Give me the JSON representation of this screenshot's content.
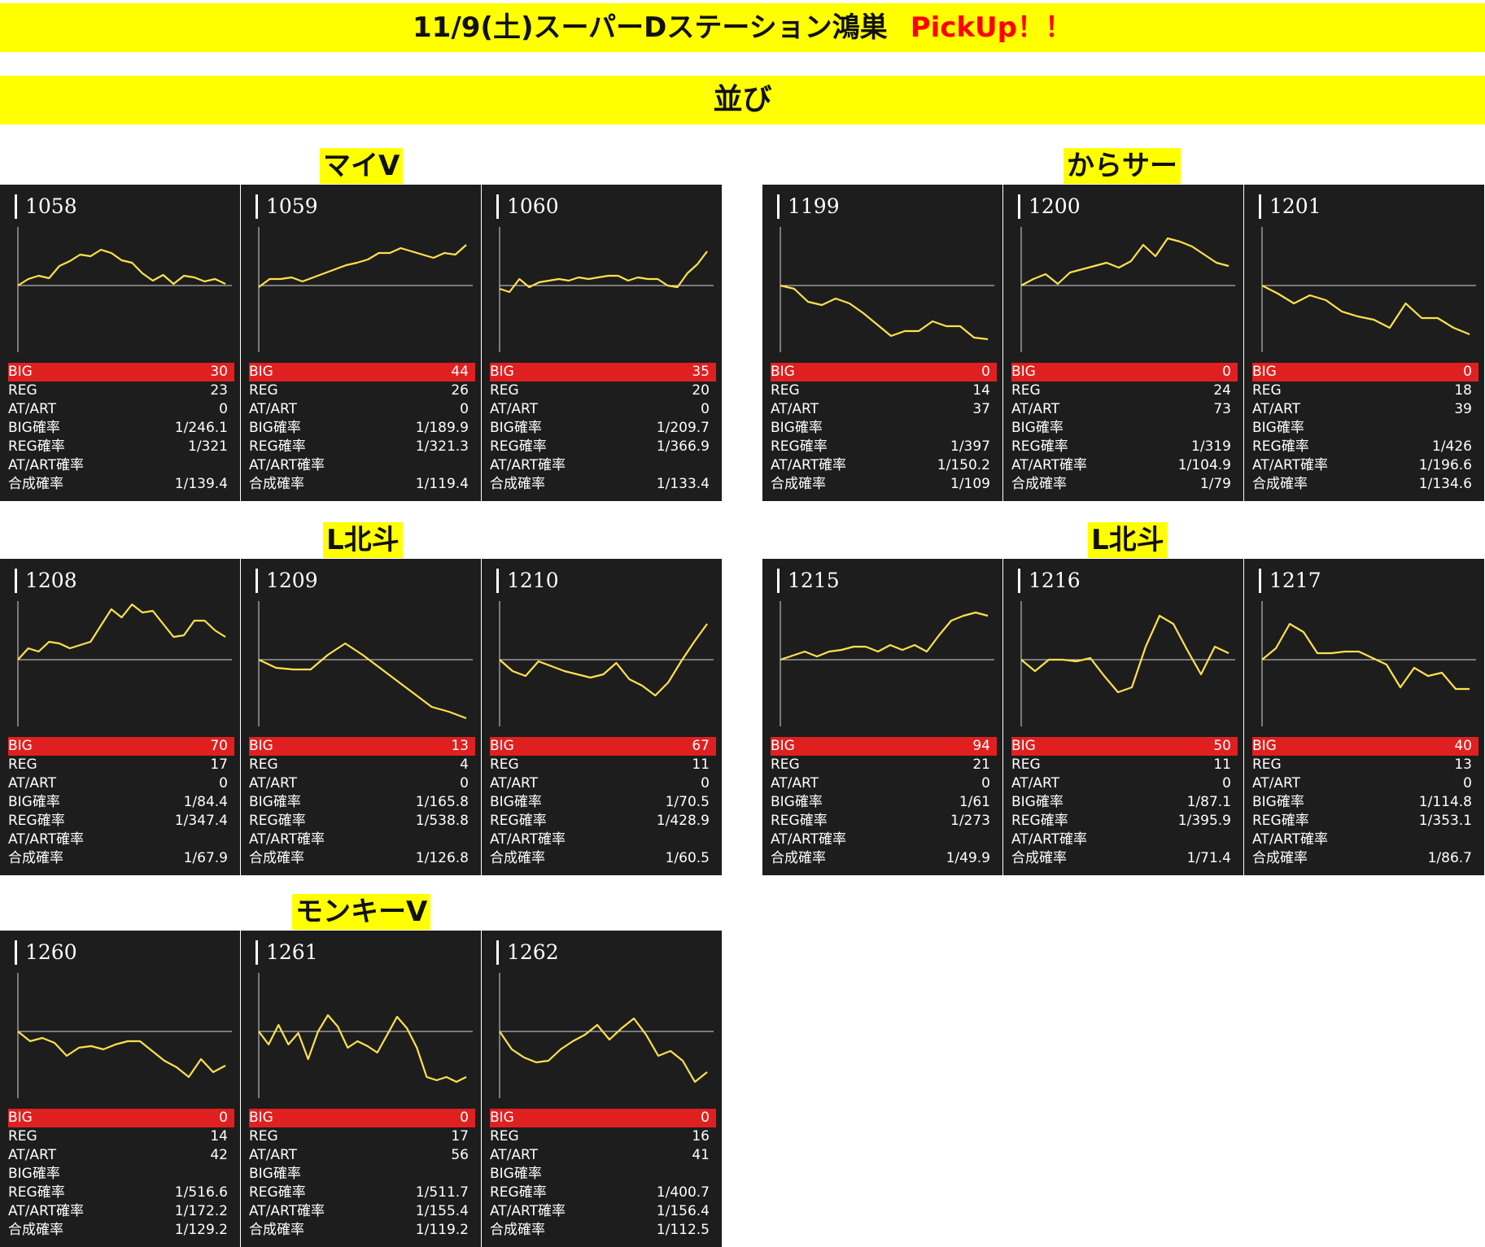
{
  "header": {
    "title": "11/9(土)スーパーDステーション鴻巣",
    "pickup": "PickUp！！"
  },
  "section": {
    "title": "並び"
  },
  "graph_note": "estimated shape only; baseline = 0, illustrative units",
  "groups": [
    {
      "label": "マイV",
      "machines": [
        {
          "no": "1058",
          "stats": [
            [
              "BIG",
              "30"
            ],
            [
              "REG",
              "23"
            ],
            [
              "AT/ART",
              "0"
            ],
            [
              "BIG確率",
              "1/246.1"
            ],
            [
              "REG確率",
              "1/321"
            ],
            [
              "AT/ART確率",
              ""
            ],
            [
              "合成確率",
              "1/139.4"
            ]
          ],
          "graph": [
            0,
            8,
            12,
            9,
            24,
            30,
            38,
            36,
            44,
            40,
            31,
            28,
            15,
            6,
            13,
            2,
            12,
            10,
            5,
            8,
            2
          ]
        },
        {
          "no": "1059",
          "stats": [
            [
              "BIG",
              "44"
            ],
            [
              "REG",
              "26"
            ],
            [
              "AT/ART",
              "0"
            ],
            [
              "BIG確率",
              "1/189.9"
            ],
            [
              "REG確率",
              "1/321.3"
            ],
            [
              "AT/ART確率",
              ""
            ],
            [
              "合成確率",
              "1/119.4"
            ]
          ],
          "graph": [
            -2,
            8,
            8,
            10,
            5,
            10,
            15,
            20,
            25,
            28,
            32,
            40,
            40,
            46,
            42,
            38,
            34,
            40,
            38,
            50
          ]
        },
        {
          "no": "1060",
          "stats": [
            [
              "BIG",
              "35"
            ],
            [
              "REG",
              "20"
            ],
            [
              "AT/ART",
              "0"
            ],
            [
              "BIG確率",
              "1/209.7"
            ],
            [
              "REG確率",
              "1/366.9"
            ],
            [
              "AT/ART確率",
              ""
            ],
            [
              "合成確率",
              "1/133.4"
            ]
          ],
          "graph": [
            -4,
            -8,
            8,
            -2,
            4,
            6,
            8,
            6,
            10,
            8,
            10,
            12,
            12,
            6,
            10,
            8,
            8,
            0,
            -2,
            15,
            26,
            42
          ]
        }
      ]
    },
    {
      "label": "からサー",
      "machines": [
        {
          "no": "1199",
          "stats": [
            [
              "BIG",
              "0"
            ],
            [
              "REG",
              "14"
            ],
            [
              "AT/ART",
              "37"
            ],
            [
              "BIG確率",
              ""
            ],
            [
              "REG確率",
              "1/397"
            ],
            [
              "AT/ART確率",
              "1/150.2"
            ],
            [
              "合成確率",
              "1/109"
            ]
          ],
          "graph": [
            0,
            -4,
            -20,
            -24,
            -16,
            -22,
            -34,
            -48,
            -62,
            -56,
            -56,
            -44,
            -50,
            -50,
            -64,
            -66
          ]
        },
        {
          "no": "1200",
          "stats": [
            [
              "BIG",
              "0"
            ],
            [
              "REG",
              "24"
            ],
            [
              "AT/ART",
              "73"
            ],
            [
              "BIG確率",
              ""
            ],
            [
              "REG確率",
              "1/319"
            ],
            [
              "AT/ART確率",
              "1/104.9"
            ],
            [
              "合成確率",
              "1/79"
            ]
          ],
          "graph": [
            0,
            8,
            14,
            2,
            16,
            20,
            24,
            28,
            22,
            30,
            50,
            36,
            58,
            54,
            48,
            38,
            28,
            24
          ]
        },
        {
          "no": "1201",
          "stats": [
            [
              "BIG",
              "0"
            ],
            [
              "REG",
              "18"
            ],
            [
              "AT/ART",
              "39"
            ],
            [
              "BIG確率",
              ""
            ],
            [
              "REG確率",
              "1/426"
            ],
            [
              "AT/ART確率",
              "1/196.6"
            ],
            [
              "合成確率",
              "1/134.6"
            ]
          ],
          "graph": [
            0,
            -10,
            -22,
            -12,
            -18,
            -32,
            -38,
            -42,
            -52,
            -22,
            -40,
            -40,
            -52,
            -60
          ]
        }
      ]
    },
    {
      "label": "L北斗",
      "machines": [
        {
          "no": "1208",
          "stats": [
            [
              "BIG",
              "70"
            ],
            [
              "REG",
              "17"
            ],
            [
              "AT/ART",
              "0"
            ],
            [
              "BIG確率",
              "1/84.4"
            ],
            [
              "REG確率",
              "1/347.4"
            ],
            [
              "AT/ART確率",
              ""
            ],
            [
              "合成確率",
              "1/67.9"
            ]
          ],
          "graph": [
            0,
            14,
            10,
            22,
            20,
            14,
            18,
            22,
            42,
            62,
            52,
            68,
            58,
            60,
            44,
            28,
            30,
            48,
            48,
            36,
            28
          ]
        },
        {
          "no": "1209",
          "stats": [
            [
              "BIG",
              "13"
            ],
            [
              "REG",
              "4"
            ],
            [
              "AT/ART",
              "0"
            ],
            [
              "BIG確率",
              "1/165.8"
            ],
            [
              "REG確率",
              "1/538.8"
            ],
            [
              "AT/ART確率",
              ""
            ],
            [
              "合成確率",
              "1/126.8"
            ]
          ],
          "graph": [
            0,
            -10,
            -12,
            -12,
            6,
            20,
            6,
            -10,
            -26,
            -42,
            -58,
            -64,
            -72
          ]
        },
        {
          "no": "1210",
          "stats": [
            [
              "BIG",
              "67"
            ],
            [
              "REG",
              "11"
            ],
            [
              "AT/ART",
              "0"
            ],
            [
              "BIG確率",
              "1/70.5"
            ],
            [
              "REG確率",
              "1/428.9"
            ],
            [
              "AT/ART確率",
              ""
            ],
            [
              "合成確率",
              "1/60.5"
            ]
          ],
          "graph": [
            0,
            -14,
            -20,
            -2,
            -8,
            -14,
            -18,
            -22,
            -18,
            -4,
            -24,
            -32,
            -44,
            -28,
            -2,
            22,
            44
          ]
        }
      ]
    },
    {
      "label": "L北斗",
      "machines": [
        {
          "no": "1215",
          "stats": [
            [
              "BIG",
              "94"
            ],
            [
              "REG",
              "21"
            ],
            [
              "AT/ART",
              "0"
            ],
            [
              "BIG確率",
              "1/61"
            ],
            [
              "REG確率",
              "1/273"
            ],
            [
              "AT/ART確率",
              ""
            ],
            [
              "合成確率",
              "1/49.9"
            ]
          ],
          "graph": [
            0,
            5,
            10,
            4,
            10,
            12,
            16,
            16,
            10,
            18,
            12,
            18,
            10,
            30,
            48,
            54,
            58,
            54
          ]
        },
        {
          "no": "1216",
          "stats": [
            [
              "BIG",
              "50"
            ],
            [
              "REG",
              "11"
            ],
            [
              "AT/ART",
              "0"
            ],
            [
              "BIG確率",
              "1/87.1"
            ],
            [
              "REG確率",
              "1/395.9"
            ],
            [
              "AT/ART確率",
              ""
            ],
            [
              "合成確率",
              "1/71.4"
            ]
          ],
          "graph": [
            0,
            -14,
            0,
            0,
            -2,
            2,
            -20,
            -40,
            -34,
            16,
            54,
            44,
            12,
            -18,
            16,
            8
          ]
        },
        {
          "no": "1217",
          "stats": [
            [
              "BIG",
              "40"
            ],
            [
              "REG",
              "13"
            ],
            [
              "AT/ART",
              "0"
            ],
            [
              "BIG確率",
              "1/114.8"
            ],
            [
              "REG確率",
              "1/353.1"
            ],
            [
              "AT/ART確率",
              ""
            ],
            [
              "合成確率",
              "1/86.7"
            ]
          ],
          "graph": [
            0,
            14,
            44,
            34,
            8,
            8,
            10,
            10,
            2,
            -6,
            -34,
            -10,
            -20,
            -16,
            -36,
            -36
          ]
        }
      ]
    },
    {
      "label": "モンキーV",
      "machines": [
        {
          "no": "1260",
          "stats": [
            [
              "BIG",
              "0"
            ],
            [
              "REG",
              "14"
            ],
            [
              "AT/ART",
              "42"
            ],
            [
              "BIG確率",
              ""
            ],
            [
              "REG確率",
              "1/516.6"
            ],
            [
              "AT/ART確率",
              "1/172.2"
            ],
            [
              "合成確率",
              "1/129.2"
            ]
          ],
          "graph": [
            0,
            -12,
            -8,
            -14,
            -30,
            -20,
            -18,
            -22,
            -16,
            -12,
            -12,
            -24,
            -36,
            -44,
            -56,
            -34,
            -50,
            -42
          ]
        },
        {
          "no": "1261",
          "stats": [
            [
              "BIG",
              "0"
            ],
            [
              "REG",
              "17"
            ],
            [
              "AT/ART",
              "56"
            ],
            [
              "BIG確率",
              ""
            ],
            [
              "REG確率",
              "1/511.7"
            ],
            [
              "AT/ART確率",
              "1/155.4"
            ],
            [
              "合成確率",
              "1/119.2"
            ]
          ],
          "graph": [
            0,
            -16,
            8,
            -16,
            -2,
            -34,
            0,
            20,
            6,
            -20,
            -12,
            -18,
            -26,
            -4,
            18,
            4,
            -20,
            -56,
            -60,
            -56,
            -62,
            -56
          ]
        },
        {
          "no": "1262",
          "stats": [
            [
              "BIG",
              "0"
            ],
            [
              "REG",
              "16"
            ],
            [
              "AT/ART",
              "41"
            ],
            [
              "BIG確率",
              ""
            ],
            [
              "REG確率",
              "1/400.7"
            ],
            [
              "AT/ART確率",
              "1/156.4"
            ],
            [
              "合成確率",
              "1/112.5"
            ]
          ],
          "graph": [
            0,
            -22,
            -32,
            -38,
            -36,
            -22,
            -12,
            -4,
            8,
            -10,
            4,
            16,
            -4,
            -30,
            -24,
            -36,
            -62,
            -50
          ]
        }
      ]
    }
  ]
}
